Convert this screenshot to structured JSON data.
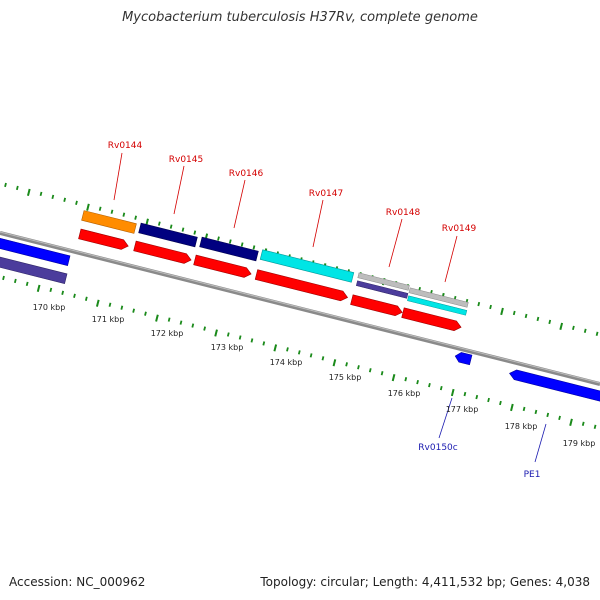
{
  "title": "Mycobacterium tuberculosis H37Rv, complete genome",
  "footer": {
    "accession": "Accession: NC_000962",
    "summary": "Topology: circular; Length: 4,411,532 bp; Genes: 4,038"
  },
  "colors": {
    "backbone": "#8a8a8a",
    "tick_major": "#1a8a1a",
    "tick_minor": "#1a8a1a",
    "cds_forward": "#ff0000",
    "cds_reverse": "#0000ff",
    "label_forward": "#d40000",
    "label_reverse": "#1a1ab0"
  },
  "kbp_labels": [
    "170 kbp",
    "171 kbp",
    "172 kbp",
    "173 kbp",
    "174 kbp",
    "175 kbp",
    "176 kbp",
    "177 kbp",
    "178 kbp",
    "179 kbp"
  ],
  "genes_forward": [
    {
      "name": "Rv0144"
    },
    {
      "name": "Rv0145"
    },
    {
      "name": "Rv0146"
    },
    {
      "name": "Rv0147"
    },
    {
      "name": "Rv0148"
    },
    {
      "name": "Rv0149"
    }
  ],
  "genes_reverse": [
    {
      "name": "Rv0150c"
    },
    {
      "name": "PE1"
    }
  ]
}
